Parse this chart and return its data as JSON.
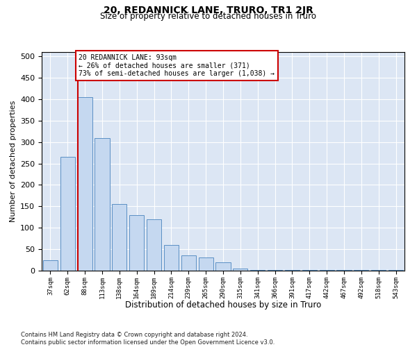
{
  "title": "20, REDANNICK LANE, TRURO, TR1 2JR",
  "subtitle": "Size of property relative to detached houses in Truro",
  "xlabel": "Distribution of detached houses by size in Truro",
  "ylabel": "Number of detached properties",
  "footer_line1": "Contains HM Land Registry data © Crown copyright and database right 2024.",
  "footer_line2": "Contains public sector information licensed under the Open Government Licence v3.0.",
  "annotation_line1": "20 REDANNICK LANE: 93sqm",
  "annotation_line2": "← 26% of detached houses are smaller (371)",
  "annotation_line3": "73% of semi-detached houses are larger (1,038) →",
  "categories": [
    "37sqm",
    "62sqm",
    "88sqm",
    "113sqm",
    "138sqm",
    "164sqm",
    "189sqm",
    "214sqm",
    "239sqm",
    "265sqm",
    "290sqm",
    "315sqm",
    "341sqm",
    "366sqm",
    "391sqm",
    "417sqm",
    "442sqm",
    "467sqm",
    "492sqm",
    "518sqm",
    "543sqm"
  ],
  "values": [
    25,
    265,
    405,
    310,
    155,
    130,
    120,
    60,
    35,
    30,
    20,
    5,
    2,
    1,
    1,
    1,
    1,
    1,
    1,
    1,
    1
  ],
  "bar_color": "#c5d8f0",
  "bar_edge_color": "#5a8fc4",
  "bg_color": "#dce6f4",
  "red_line_index": 2,
  "red_line_color": "#cc0000",
  "annotation_box_color": "#ffffff",
  "annotation_box_edge": "#cc0000",
  "ylim": [
    0,
    510
  ],
  "yticks": [
    0,
    50,
    100,
    150,
    200,
    250,
    300,
    350,
    400,
    450,
    500
  ]
}
